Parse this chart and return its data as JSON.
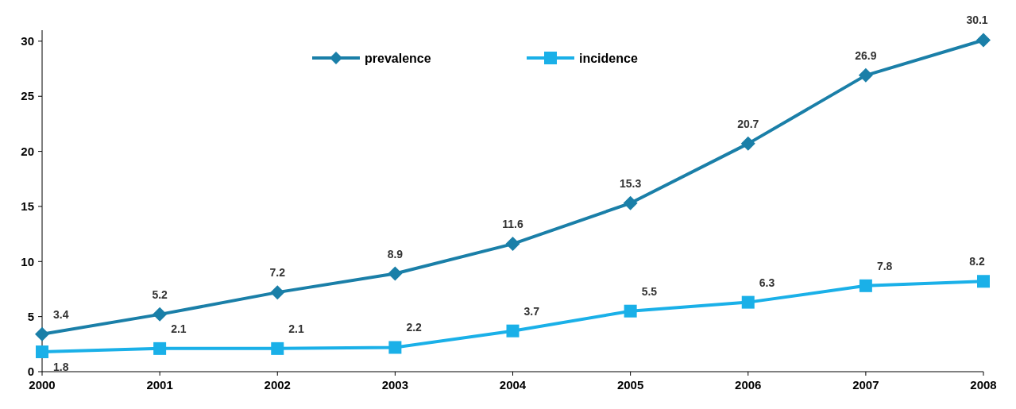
{
  "chart_data": {
    "type": "line",
    "categories": [
      "2000",
      "2001",
      "2002",
      "2003",
      "2004",
      "2005",
      "2006",
      "2007",
      "2008"
    ],
    "series": [
      {
        "name": "prevalence",
        "color": "#1a7fa8",
        "marker": "diamond",
        "values": [
          3.4,
          5.2,
          7.2,
          8.9,
          11.6,
          15.3,
          20.7,
          26.9,
          30.1
        ]
      },
      {
        "name": "incidence",
        "color": "#1ab0e8",
        "marker": "square",
        "values": [
          1.8,
          2.1,
          2.1,
          2.2,
          3.7,
          5.5,
          6.3,
          7.8,
          8.2
        ]
      }
    ],
    "ylim": [
      0,
      31
    ],
    "yticks": [
      0,
      5,
      10,
      15,
      20,
      25,
      30
    ],
    "grid": false,
    "legend": "top",
    "data_labels": true,
    "line_style": "solid"
  }
}
